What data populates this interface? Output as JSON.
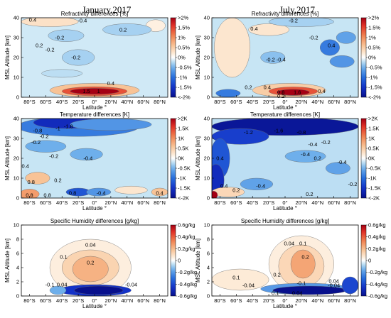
{
  "figure": {
    "column_titles": [
      "January,2017",
      "July,2017"
    ]
  },
  "chart_data": [
    {
      "type": "heatmap",
      "id": "refr-jan",
      "column": 0,
      "row": 0,
      "title": "Refractivity differences [%]",
      "xlabel": "Latitude °",
      "ylabel": "MSL Altitude [km]",
      "xlim": [
        -90,
        90
      ],
      "ylim": [
        0,
        40
      ],
      "yticks": [
        0,
        10,
        20,
        30,
        40
      ],
      "xtick_labels": [
        "80°S",
        "60°S",
        "40°S",
        "20°S",
        "0°",
        "20°N",
        "40°N",
        "60°N",
        "80°N"
      ],
      "colorbar_ticks": [
        ">2%",
        "1.5%",
        "1%",
        "0.5%",
        "0%",
        "-0.5%",
        "-1%",
        "-1.5%",
        "<-2%"
      ],
      "vmax": 2,
      "background": -0.15,
      "blobs": [
        {
          "x": -55,
          "y": 38,
          "rx": 35,
          "ry": 2.5,
          "v": 0.3
        },
        {
          "x": 75,
          "y": 36,
          "rx": 12,
          "ry": 3,
          "v": 0.15
        },
        {
          "x": -35,
          "y": 31,
          "rx": 22,
          "ry": 3,
          "v": -0.3
        },
        {
          "x": 40,
          "y": 34,
          "rx": 30,
          "ry": 3,
          "v": -0.3
        },
        {
          "x": -20,
          "y": 20,
          "rx": 20,
          "ry": 4,
          "v": -0.3
        },
        {
          "x": -40,
          "y": 12,
          "rx": 25,
          "ry": 2,
          "v": -0.22
        },
        {
          "x": 0,
          "y": 3.5,
          "rx": 55,
          "ry": 3.5,
          "v": 0.6
        },
        {
          "x": 0,
          "y": 3,
          "rx": 40,
          "ry": 2.3,
          "v": 1.4
        },
        {
          "x": 0,
          "y": 3,
          "rx": 30,
          "ry": 1.5,
          "v": 2.2
        }
      ],
      "contour_labels": [
        {
          "text": "0.4",
          "x": -76,
          "y": 39
        },
        {
          "text": "-0.4",
          "x": -15,
          "y": 38.5
        },
        {
          "text": "0.2",
          "x": 35,
          "y": 34
        },
        {
          "text": "-0.2",
          "x": -43,
          "y": 30
        },
        {
          "text": "-0.2",
          "x": -55,
          "y": 24
        },
        {
          "text": "0.2",
          "x": -68,
          "y": 26
        },
        {
          "text": "-0.2",
          "x": -23,
          "y": 20
        },
        {
          "text": "0.4",
          "x": 20,
          "y": 7
        },
        {
          "text": "1.5",
          "x": -10,
          "y": 3
        },
        {
          "text": "1",
          "x": 5,
          "y": 3
        }
      ]
    },
    {
      "type": "heatmap",
      "id": "refr-jul",
      "column": 1,
      "row": 0,
      "title": "Refractivity differences [%]",
      "xlabel": "Latitude °",
      "ylabel": "MSL Altitude [km]",
      "xlim": [
        -90,
        90
      ],
      "ylim": [
        0,
        40
      ],
      "yticks": [
        0,
        10,
        20,
        30,
        40
      ],
      "xtick_labels": [
        "80°S",
        "60°S",
        "40°S",
        "20°S",
        "0°",
        "20°N",
        "40°N",
        "60°N",
        "80°N"
      ],
      "colorbar_ticks": [
        ">2%",
        "1.5%",
        "1%",
        "0.5%",
        "0%",
        "-0.5%",
        "-1%",
        "-1.5%",
        "<-2%"
      ],
      "vmax": 2,
      "background": -0.18,
      "blobs": [
        {
          "x": -65,
          "y": 25,
          "rx": 22,
          "ry": 15,
          "v": 0.25
        },
        {
          "x": -20,
          "y": 34,
          "rx": 25,
          "ry": 3,
          "v": 0.25
        },
        {
          "x": 55,
          "y": 25,
          "rx": 12,
          "ry": 4,
          "v": -0.9
        },
        {
          "x": 75,
          "y": 30,
          "rx": 12,
          "ry": 3,
          "v": -0.6
        },
        {
          "x": 70,
          "y": 18,
          "rx": 15,
          "ry": 3,
          "v": -0.7
        },
        {
          "x": 20,
          "y": 38,
          "rx": 40,
          "ry": 2.5,
          "v": -0.3
        },
        {
          "x": -15,
          "y": 20,
          "rx": 15,
          "ry": 3,
          "v": -0.4
        },
        {
          "x": -70,
          "y": 2,
          "rx": 15,
          "ry": 2,
          "v": -0.9
        },
        {
          "x": 5,
          "y": 3.5,
          "rx": 45,
          "ry": 3.5,
          "v": 0.5
        },
        {
          "x": 10,
          "y": 3,
          "rx": 30,
          "ry": 2.2,
          "v": 1.4
        },
        {
          "x": 10,
          "y": 2.5,
          "rx": 20,
          "ry": 1.5,
          "v": 2.2
        }
      ],
      "contour_labels": [
        {
          "text": "0.4",
          "x": -38,
          "y": 34.5
        },
        {
          "text": "-0.2",
          "x": 10,
          "y": 38.5
        },
        {
          "text": "-0.2",
          "x": 35,
          "y": 30
        },
        {
          "text": "0.4",
          "x": 57,
          "y": 26
        },
        {
          "text": "-0.2",
          "x": -18,
          "y": 19
        },
        {
          "text": "-0.4",
          "x": -5,
          "y": 19
        },
        {
          "text": "0.2",
          "x": -45,
          "y": 5
        },
        {
          "text": "0.4",
          "x": -22,
          "y": 5
        },
        {
          "text": "0.8",
          "x": -5,
          "y": 2.5
        },
        {
          "text": "1.6",
          "x": 15,
          "y": 2.5
        },
        {
          "text": "0.2",
          "x": -5,
          "y": 0.5
        },
        {
          "text": "0.4",
          "x": 45,
          "y": 3
        }
      ]
    },
    {
      "type": "heatmap",
      "id": "temp-jan",
      "column": 0,
      "row": 1,
      "title": "Temperature differences [K]",
      "xlabel": "Latitude °",
      "ylabel": "MSL Altitude [km]",
      "xlim": [
        -90,
        90
      ],
      "ylim": [
        0,
        40
      ],
      "yticks": [
        0,
        10,
        20,
        30,
        40
      ],
      "xtick_labels": [
        "80°S",
        "60°S",
        "40°S",
        "20°S",
        "0°",
        "20°N",
        "40°N",
        "60°N",
        "80°N"
      ],
      "colorbar_ticks": [
        ">2K",
        "1.5K",
        "1K",
        "0.5K",
        "0K",
        "-0.5K",
        "-1K",
        "-1.5K",
        "<-2K"
      ],
      "vmax": 2,
      "background": -0.18,
      "blobs": [
        {
          "x": -20,
          "y": 36,
          "rx": 75,
          "ry": 5,
          "v": -0.9
        },
        {
          "x": -35,
          "y": 38,
          "rx": 40,
          "ry": 3,
          "v": -1.6
        },
        {
          "x": 20,
          "y": 37,
          "rx": 50,
          "ry": 3,
          "v": -0.7
        },
        {
          "x": -60,
          "y": 26,
          "rx": 25,
          "ry": 3,
          "v": -0.5
        },
        {
          "x": -10,
          "y": 22,
          "rx": 20,
          "ry": 3,
          "v": -0.5
        },
        {
          "x": -70,
          "y": 10,
          "rx": 15,
          "ry": 3,
          "v": 0.6
        },
        {
          "x": -80,
          "y": 2,
          "rx": 12,
          "ry": 2.5,
          "v": 0.9
        },
        {
          "x": -20,
          "y": 3,
          "rx": 15,
          "ry": 2,
          "v": -1.2
        },
        {
          "x": 5,
          "y": 3,
          "rx": 15,
          "ry": 2,
          "v": -0.7
        },
        {
          "x": 45,
          "y": 4,
          "rx": 20,
          "ry": 2,
          "v": 0.25
        },
        {
          "x": 80,
          "y": 3,
          "rx": 10,
          "ry": 2,
          "v": 0.6
        }
      ],
      "contour_labels": [
        {
          "text": "-0.8",
          "x": -70,
          "y": 34
        },
        {
          "text": "-1",
          "x": -45,
          "y": 35
        },
        {
          "text": "-1.8",
          "x": -32,
          "y": 36
        },
        {
          "text": "-0.2",
          "x": -62,
          "y": 31
        },
        {
          "text": "-0.2",
          "x": -72,
          "y": 28
        },
        {
          "text": "-0.2",
          "x": -50,
          "y": 21
        },
        {
          "text": "-0.4",
          "x": -8,
          "y": 20
        },
        {
          "text": "0.4",
          "x": -85,
          "y": 16
        },
        {
          "text": "0.8",
          "x": -78,
          "y": 8
        },
        {
          "text": "0.2",
          "x": -45,
          "y": 9
        },
        {
          "text": "0.8",
          "x": -80,
          "y": 1.5
        },
        {
          "text": "0.8",
          "x": -58,
          "y": 1.5
        },
        {
          "text": "0.8",
          "x": -27,
          "y": 2.5
        },
        {
          "text": "-0.4",
          "x": 8,
          "y": 2.5
        },
        {
          "text": "0.4",
          "x": 80,
          "y": 2.5
        }
      ]
    },
    {
      "type": "heatmap",
      "id": "temp-jul",
      "column": 1,
      "row": 1,
      "title": "Temperature differences [K]",
      "xlabel": "Latitude °",
      "ylabel": "MSL Altitude [km]",
      "xlim": [
        -90,
        90
      ],
      "ylim": [
        0,
        40
      ],
      "yticks": [
        0,
        10,
        20,
        30,
        40
      ],
      "xtick_labels": [
        "80°S",
        "60°S",
        "40°S",
        "20°S",
        "0°",
        "20°N",
        "40°N",
        "60°N",
        "80°N"
      ],
      "colorbar_ticks": [
        ">2K",
        "1.5K",
        "1K",
        "0.5K",
        "0K",
        "-0.5K",
        "-1K",
        "-1.5K",
        "<-2K"
      ],
      "vmax": 2,
      "background": -0.22,
      "blobs": [
        {
          "x": 0,
          "y": 36,
          "rx": 90,
          "ry": 4.5,
          "v": -1.9
        },
        {
          "x": -55,
          "y": 31,
          "rx": 35,
          "ry": 4,
          "v": -1.4
        },
        {
          "x": -80,
          "y": 20,
          "rx": 12,
          "ry": 10,
          "v": -1.2
        },
        {
          "x": -85,
          "y": 9,
          "rx": 10,
          "ry": 8,
          "v": -1.6
        },
        {
          "x": 25,
          "y": 21,
          "rx": 25,
          "ry": 3,
          "v": -0.5
        },
        {
          "x": 65,
          "y": 15,
          "rx": 15,
          "ry": 3,
          "v": -0.6
        },
        {
          "x": -35,
          "y": 7,
          "rx": 20,
          "ry": 3,
          "v": -0.6
        },
        {
          "x": -70,
          "y": 3,
          "rx": 20,
          "ry": 2.5,
          "v": 0.4
        },
        {
          "x": -88,
          "y": 1.5,
          "rx": 5,
          "ry": 2,
          "v": 2.2
        }
      ],
      "contour_labels": [
        {
          "text": "-1.2",
          "x": -45,
          "y": 33
        },
        {
          "text": "-1.6",
          "x": -8,
          "y": 34
        },
        {
          "text": "-0.8",
          "x": 20,
          "y": 33
        },
        {
          "text": "-0.4",
          "x": 34,
          "y": 27
        },
        {
          "text": "-0.2",
          "x": 50,
          "y": 28
        },
        {
          "text": "-0.4",
          "x": 25,
          "y": 22
        },
        {
          "text": "0.2",
          "x": 40,
          "y": 20
        },
        {
          "text": "0.4",
          "x": -80,
          "y": 20
        },
        {
          "text": "-0.4",
          "x": 70,
          "y": 18
        },
        {
          "text": "0.4",
          "x": -75,
          "y": 6
        },
        {
          "text": "0.2",
          "x": -60,
          "y": 4
        },
        {
          "text": "-0.4",
          "x": -30,
          "y": 6
        },
        {
          "text": "0.2",
          "x": 30,
          "y": 2
        },
        {
          "text": "-0.2",
          "x": 83,
          "y": 7
        }
      ]
    },
    {
      "type": "heatmap",
      "id": "hum-jan",
      "column": 0,
      "row": 2,
      "title": "Specific Humidity differences [g/kg]",
      "xlabel": "Latitude °",
      "ylabel": "MSL Altitude [km]",
      "xlim": [
        -90,
        90
      ],
      "ylim": [
        0,
        10
      ],
      "yticks": [
        0,
        2,
        4,
        6,
        8,
        10
      ],
      "xtick_labels": [
        "80°S",
        "60°S",
        "40°S",
        "20°S",
        "0°",
        "20°N",
        "40°N",
        "60°N",
        "80°N"
      ],
      "colorbar_ticks": [
        "0.6g/kg",
        "0.4g/kg",
        "0.2g/kg",
        "0",
        "-0.2g/kg",
        "-0.4g/kg",
        "-0.6g/kg"
      ],
      "vmax": 0.6,
      "background": 0.0,
      "blobs": [
        {
          "x": -5,
          "y": 4,
          "rx": 50,
          "ry": 4,
          "v": 0.05
        },
        {
          "x": -5,
          "y": 4,
          "rx": 35,
          "ry": 2.5,
          "v": 0.13
        },
        {
          "x": -5,
          "y": 3.8,
          "rx": 22,
          "ry": 1.8,
          "v": 0.22
        },
        {
          "x": 0,
          "y": 0.8,
          "rx": 45,
          "ry": 0.8,
          "v": -0.45
        },
        {
          "x": 5,
          "y": 0.8,
          "rx": 30,
          "ry": 0.6,
          "v": -0.6
        },
        {
          "x": -45,
          "y": 0.8,
          "rx": 10,
          "ry": 0.6,
          "v": -0.15
        }
      ],
      "contour_labels": [
        {
          "text": "0.04",
          "x": -5,
          "y": 7.2
        },
        {
          "text": "0.1",
          "x": -38,
          "y": 5.5
        },
        {
          "text": "0.2",
          "x": -5,
          "y": 4.7
        },
        {
          "text": "-0.1",
          "x": -55,
          "y": 1.6
        },
        {
          "text": "0.04",
          "x": -40,
          "y": 1.6
        },
        {
          "text": "-0.04",
          "x": 45,
          "y": 1.6
        }
      ]
    },
    {
      "type": "heatmap",
      "id": "hum-jul",
      "column": 1,
      "row": 2,
      "title": "Specific Humidity differences [g/kg]",
      "xlabel": "Latitude °",
      "ylabel": "MSL Altitude [km]",
      "xlim": [
        -90,
        90
      ],
      "ylim": [
        0,
        10
      ],
      "yticks": [
        0,
        2,
        4,
        6,
        8,
        10
      ],
      "xtick_labels": [
        "80°S",
        "60°S",
        "40°S",
        "20°S",
        "0°",
        "20°N",
        "40°N",
        "60°N",
        "80°N"
      ],
      "colorbar_ticks": [
        "0.6g/kg",
        "0.4g/kg",
        "0.2g/kg",
        "0",
        "-0.2g/kg",
        "-0.4g/kg",
        "-0.6g/kg"
      ],
      "vmax": 0.6,
      "background": 0.0,
      "blobs": [
        {
          "x": 20,
          "y": 4.5,
          "rx": 40,
          "ry": 4,
          "v": 0.05
        },
        {
          "x": 20,
          "y": 4.2,
          "rx": 28,
          "ry": 3,
          "v": 0.12
        },
        {
          "x": 22,
          "y": 4.5,
          "rx": 15,
          "ry": 2,
          "v": 0.25
        },
        {
          "x": -55,
          "y": 2.3,
          "rx": 35,
          "ry": 1.5,
          "v": 0.06
        },
        {
          "x": 25,
          "y": 1.0,
          "rx": 55,
          "ry": 0.8,
          "v": -0.2
        },
        {
          "x": 30,
          "y": 0.8,
          "rx": 45,
          "ry": 0.6,
          "v": -0.6
        },
        {
          "x": 80,
          "y": 1.5,
          "rx": 10,
          "ry": 1.2,
          "v": -0.4
        }
      ],
      "contour_labels": [
        {
          "text": "0.04",
          "x": 5,
          "y": 7.4
        },
        {
          "text": "0.1",
          "x": 22,
          "y": 7.4
        },
        {
          "text": "0.2",
          "x": 25,
          "y": 5.5
        },
        {
          "text": "0.1",
          "x": -60,
          "y": 2.6
        },
        {
          "text": "0.2",
          "x": -10,
          "y": 3.0
        },
        {
          "text": "-0.04",
          "x": -45,
          "y": 1.5
        },
        {
          "text": "-0.1",
          "x": 20,
          "y": 1.8
        },
        {
          "text": "0.04",
          "x": 60,
          "y": 2.1
        },
        {
          "text": "-0.04",
          "x": 60,
          "y": 1.5
        },
        {
          "text": "0.1",
          "x": -12,
          "y": 0.4
        },
        {
          "text": "0.04",
          "x": 15,
          "y": 0.4
        }
      ]
    }
  ]
}
